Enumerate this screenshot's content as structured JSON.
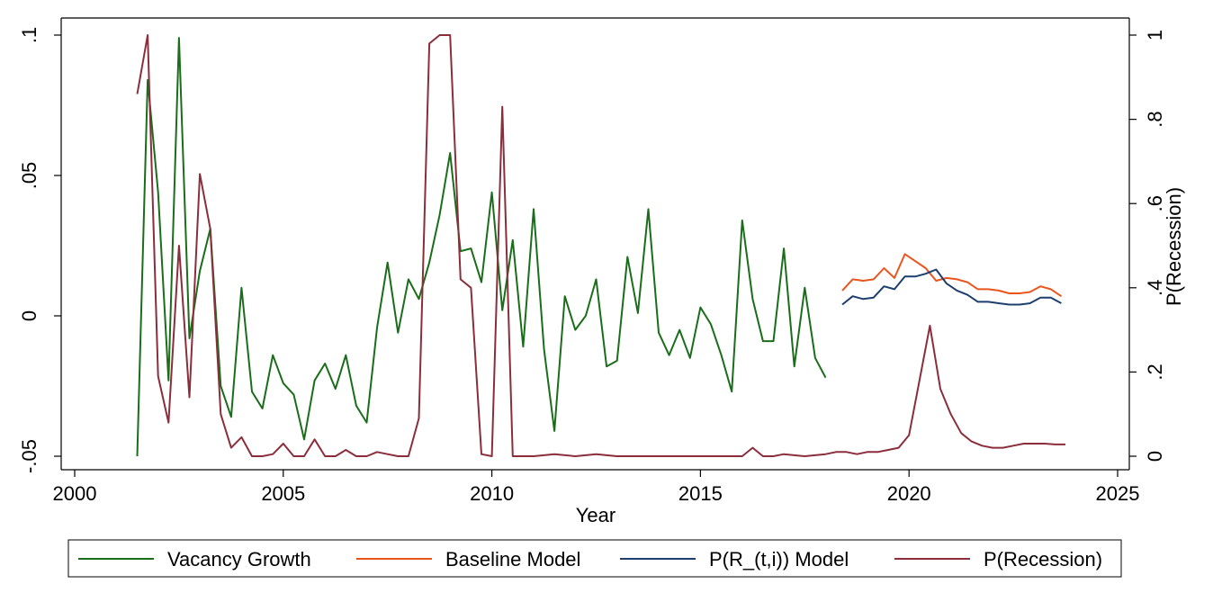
{
  "chart_data": {
    "type": "line",
    "title": "",
    "xlabel": "Year",
    "ylabel_left": "",
    "ylabel_right": "P(Recession)",
    "xlim": [
      2000,
      2025
    ],
    "ylim_left": [
      -0.05,
      0.1
    ],
    "ylim_right": [
      0,
      1
    ],
    "x_ticks": [
      {
        "value": 2000,
        "label": "2000"
      },
      {
        "value": 2005,
        "label": "2005"
      },
      {
        "value": 2010,
        "label": "2010"
      },
      {
        "value": 2015,
        "label": "2015"
      },
      {
        "value": 2020,
        "label": "2020"
      },
      {
        "value": 2025,
        "label": "2025"
      }
    ],
    "y_ticks_left": [
      {
        "value": -0.05,
        "label": "-.05"
      },
      {
        "value": 0,
        "label": "0"
      },
      {
        "value": 0.05,
        "label": ".05"
      },
      {
        "value": 0.1,
        "label": ".1"
      }
    ],
    "y_ticks_right": [
      {
        "value": 0,
        "label": "0"
      },
      {
        "value": 0.2,
        "label": ".2"
      },
      {
        "value": 0.4,
        "label": ".4"
      },
      {
        "value": 0.6,
        "label": ".6"
      },
      {
        "value": 0.8,
        "label": ".8"
      },
      {
        "value": 1,
        "label": "1"
      }
    ],
    "grid": false,
    "legend_position": "bottom",
    "series": [
      {
        "name": "Vacancy Growth",
        "axis": "left",
        "color": "#1a6e1a",
        "x": [
          2001.5,
          2001.75,
          2002,
          2002.25,
          2002.5,
          2002.75,
          2003,
          2003.25,
          2003.5,
          2003.75,
          2004,
          2004.25,
          2004.5,
          2004.75,
          2005,
          2005.25,
          2005.5,
          2005.75,
          2006,
          2006.25,
          2006.5,
          2006.75,
          2007,
          2007.25,
          2007.5,
          2007.75,
          2008,
          2008.25,
          2008.5,
          2008.75,
          2009,
          2009.25,
          2009.5,
          2009.75,
          2010,
          2010.25,
          2010.5,
          2010.75,
          2011,
          2011.25,
          2011.5,
          2011.75,
          2012,
          2012.25,
          2012.5,
          2012.75,
          2013,
          2013.25,
          2013.5,
          2013.75,
          2014,
          2014.25,
          2014.5,
          2014.75,
          2015,
          2015.25,
          2015.5,
          2015.75,
          2016,
          2016.25,
          2016.5,
          2016.75,
          2017,
          2017.25,
          2017.5,
          2017.75,
          2018
        ],
        "values": [
          -0.05,
          0.084,
          0.044,
          -0.023,
          0.099,
          -0.008,
          0.016,
          0.031,
          -0.025,
          -0.036,
          0.01,
          -0.027,
          -0.033,
          -0.014,
          -0.024,
          -0.028,
          -0.044,
          -0.023,
          -0.017,
          -0.026,
          -0.014,
          -0.032,
          -0.038,
          -0.004,
          0.019,
          -0.006,
          0.013,
          0.006,
          0.019,
          0.036,
          0.058,
          0.023,
          0.024,
          0.012,
          0.044,
          0.002,
          0.027,
          -0.011,
          0.038,
          -0.012,
          -0.041,
          0.007,
          -0.005,
          0,
          0.013,
          -0.018,
          -0.016,
          0.021,
          0.001,
          0.038,
          -0.006,
          -0.014,
          -0.005,
          -0.015,
          0.003,
          -0.003,
          -0.014,
          -0.027,
          0.034,
          0.006,
          -0.009,
          -0.009,
          0.024,
          -0.018,
          0.01,
          -0.015,
          -0.022
        ]
      },
      {
        "name": "Baseline Model",
        "axis": "left",
        "color": "#e8561e",
        "x": [
          2018.4,
          2018.65,
          2018.9,
          2019.15,
          2019.4,
          2019.65,
          2019.9,
          2020.15,
          2020.4,
          2020.65,
          2020.9,
          2021.15,
          2021.4,
          2021.65,
          2021.9,
          2022.15,
          2022.4,
          2022.65,
          2022.9,
          2023.15,
          2023.4,
          2023.65
        ],
        "values": [
          0.009,
          0.013,
          0.0125,
          0.013,
          0.017,
          0.0135,
          0.022,
          0.0195,
          0.017,
          0.0125,
          0.0135,
          0.013,
          0.012,
          0.0095,
          0.0095,
          0.009,
          0.008,
          0.008,
          0.0085,
          0.0105,
          0.0095,
          0.007
        ]
      },
      {
        "name": "P(R_(t,i)) Model",
        "axis": "left",
        "color": "#1c3f6e",
        "x": [
          2018.4,
          2018.65,
          2018.9,
          2019.15,
          2019.4,
          2019.65,
          2019.9,
          2020.15,
          2020.4,
          2020.65,
          2020.9,
          2021.15,
          2021.4,
          2021.65,
          2021.9,
          2022.15,
          2022.4,
          2022.65,
          2022.9,
          2023.15,
          2023.4,
          2023.65
        ],
        "values": [
          0.004,
          0.007,
          0.006,
          0.0065,
          0.0105,
          0.0095,
          0.014,
          0.014,
          0.015,
          0.0165,
          0.0115,
          0.009,
          0.0075,
          0.005,
          0.005,
          0.0045,
          0.004,
          0.004,
          0.0045,
          0.0065,
          0.0065,
          0.0045
        ]
      },
      {
        "name": "P(Recession)",
        "axis": "right",
        "color": "#8b2e3c",
        "x": [
          2001.5,
          2001.75,
          2002,
          2002.25,
          2002.5,
          2002.75,
          2003,
          2003.25,
          2003.5,
          2003.75,
          2004,
          2004.25,
          2004.5,
          2004.75,
          2005,
          2005.25,
          2005.5,
          2005.75,
          2006,
          2006.25,
          2006.5,
          2006.75,
          2007,
          2007.25,
          2007.5,
          2007.75,
          2008,
          2008.25,
          2008.5,
          2008.75,
          2009,
          2009.25,
          2009.5,
          2009.75,
          2010,
          2010.25,
          2010.5,
          2010.75,
          2011,
          2011.5,
          2012,
          2012.5,
          2013,
          2013.5,
          2014,
          2014.5,
          2015,
          2015.5,
          2016,
          2016.25,
          2016.5,
          2016.75,
          2017,
          2017.5,
          2018,
          2018.25,
          2018.5,
          2018.75,
          2019,
          2019.25,
          2019.5,
          2019.75,
          2020,
          2020.25,
          2020.5,
          2020.75,
          2021,
          2021.25,
          2021.5,
          2021.75,
          2022,
          2022.25,
          2022.5,
          2022.75,
          2023,
          2023.25,
          2023.5,
          2023.75
        ],
        "values": [
          0.86,
          1.0,
          0.19,
          0.08,
          0.5,
          0.14,
          0.67,
          0.54,
          0.1,
          0.02,
          0.045,
          0,
          0,
          0.005,
          0.03,
          0,
          0,
          0.04,
          0,
          0,
          0.015,
          0,
          0,
          0.01,
          0.005,
          0,
          0,
          0.09,
          0.98,
          1.0,
          1.0,
          0.42,
          0.4,
          0.005,
          0,
          0.83,
          0,
          0,
          0,
          0.005,
          0,
          0.005,
          0,
          0,
          0,
          0,
          0,
          0,
          0,
          0.02,
          0,
          0,
          0.005,
          0,
          0.005,
          0.01,
          0.01,
          0.005,
          0.01,
          0.01,
          0.015,
          0.02,
          0.05,
          0.18,
          0.31,
          0.16,
          0.1,
          0.055,
          0.035,
          0.025,
          0.02,
          0.02,
          0.025,
          0.03,
          0.03,
          0.03,
          0.028,
          0.028
        ]
      }
    ]
  }
}
